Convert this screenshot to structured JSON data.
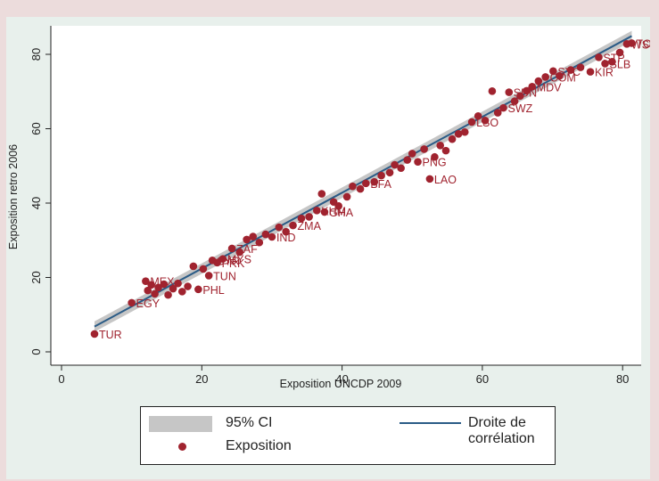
{
  "chart_data": {
    "type": "scatter",
    "xlabel": "Exposition UNCDP 2009",
    "ylabel": "Exposition retro 2006",
    "xlim": [
      0,
      82
    ],
    "ylim": [
      0,
      85
    ],
    "xticks": [
      0,
      20,
      40,
      60,
      80
    ],
    "yticks": [
      0,
      20,
      40,
      60,
      80
    ],
    "grid": false,
    "legend_position": "bottom",
    "fit": {
      "intercept": 2.0,
      "slope": 1.02
    },
    "series": [
      {
        "name": "Exposition",
        "color": "#a0232f",
        "points": [
          {
            "x": 4.7,
            "y": 4.8,
            "label": "TUR"
          },
          {
            "x": 10.0,
            "y": 13.2,
            "label": "EGY"
          },
          {
            "x": 12.0,
            "y": 19.0,
            "label": "MEX"
          },
          {
            "x": 12.3,
            "y": 16.5,
            "label": ""
          },
          {
            "x": 12.8,
            "y": 18.0,
            "label": ""
          },
          {
            "x": 13.3,
            "y": 15.6,
            "label": ""
          },
          {
            "x": 13.8,
            "y": 17.3,
            "label": ""
          },
          {
            "x": 14.6,
            "y": 18.2,
            "label": ""
          },
          {
            "x": 15.2,
            "y": 15.3,
            "label": ""
          },
          {
            "x": 15.9,
            "y": 17.0,
            "label": ""
          },
          {
            "x": 16.6,
            "y": 18.4,
            "label": ""
          },
          {
            "x": 17.2,
            "y": 16.2,
            "label": ""
          },
          {
            "x": 18.0,
            "y": 17.6,
            "label": ""
          },
          {
            "x": 18.8,
            "y": 23.0,
            "label": ""
          },
          {
            "x": 19.5,
            "y": 16.8,
            "label": "PHL"
          },
          {
            "x": 20.2,
            "y": 22.3,
            "label": ""
          },
          {
            "x": 21.0,
            "y": 20.5,
            "label": "TUN"
          },
          {
            "x": 21.5,
            "y": 24.6,
            "label": "SYR"
          },
          {
            "x": 22.2,
            "y": 24.0,
            "label": "PRK"
          },
          {
            "x": 23.0,
            "y": 25.0,
            "label": "MYS"
          },
          {
            "x": 24.3,
            "y": 27.8,
            "label": "ZAF"
          },
          {
            "x": 25.4,
            "y": 26.8,
            "label": ""
          },
          {
            "x": 26.4,
            "y": 30.2,
            "label": ""
          },
          {
            "x": 27.3,
            "y": 31.0,
            "label": ""
          },
          {
            "x": 28.2,
            "y": 29.4,
            "label": ""
          },
          {
            "x": 29.1,
            "y": 31.6,
            "label": ""
          },
          {
            "x": 30.0,
            "y": 30.9,
            "label": "IND"
          },
          {
            "x": 31.0,
            "y": 33.5,
            "label": ""
          },
          {
            "x": 32.0,
            "y": 32.3,
            "label": ""
          },
          {
            "x": 33.0,
            "y": 34.0,
            "label": "ZMA"
          },
          {
            "x": 34.2,
            "y": 35.9,
            "label": ""
          },
          {
            "x": 35.3,
            "y": 36.3,
            "label": ""
          },
          {
            "x": 36.4,
            "y": 38.0,
            "label": "KHM"
          },
          {
            "x": 37.1,
            "y": 42.5,
            "label": ""
          },
          {
            "x": 37.5,
            "y": 37.6,
            "label": "GHA"
          },
          {
            "x": 38.8,
            "y": 40.3,
            "label": ""
          },
          {
            "x": 39.5,
            "y": 39.2,
            "label": ""
          },
          {
            "x": 40.7,
            "y": 41.7,
            "label": ""
          },
          {
            "x": 41.5,
            "y": 44.5,
            "label": ""
          },
          {
            "x": 42.6,
            "y": 43.8,
            "label": ""
          },
          {
            "x": 43.4,
            "y": 45.3,
            "label": "BFA"
          },
          {
            "x": 44.6,
            "y": 45.7,
            "label": ""
          },
          {
            "x": 45.6,
            "y": 47.4,
            "label": ""
          },
          {
            "x": 46.8,
            "y": 48.2,
            "label": ""
          },
          {
            "x": 47.5,
            "y": 50.3,
            "label": ""
          },
          {
            "x": 48.4,
            "y": 49.4,
            "label": ""
          },
          {
            "x": 49.3,
            "y": 51.6,
            "label": ""
          },
          {
            "x": 50.0,
            "y": 53.3,
            "label": ""
          },
          {
            "x": 50.8,
            "y": 51.1,
            "label": "PNG"
          },
          {
            "x": 51.7,
            "y": 54.5,
            "label": ""
          },
          {
            "x": 52.5,
            "y": 46.5,
            "label": "LAO"
          },
          {
            "x": 53.2,
            "y": 52.4,
            "label": ""
          },
          {
            "x": 54.0,
            "y": 55.5,
            "label": ""
          },
          {
            "x": 54.8,
            "y": 54.1,
            "label": ""
          },
          {
            "x": 55.7,
            "y": 57.2,
            "label": ""
          },
          {
            "x": 56.6,
            "y": 58.6,
            "label": ""
          },
          {
            "x": 57.5,
            "y": 59.1,
            "label": ""
          },
          {
            "x": 58.5,
            "y": 61.8,
            "label": "LSO"
          },
          {
            "x": 59.4,
            "y": 63.4,
            "label": ""
          },
          {
            "x": 60.4,
            "y": 62.2,
            "label": ""
          },
          {
            "x": 61.4,
            "y": 70.1,
            "label": ""
          },
          {
            "x": 62.2,
            "y": 64.3,
            "label": ""
          },
          {
            "x": 63.0,
            "y": 65.6,
            "label": "SWZ"
          },
          {
            "x": 63.8,
            "y": 69.8,
            "label": "SDN"
          },
          {
            "x": 64.6,
            "y": 67.4,
            "label": ""
          },
          {
            "x": 65.4,
            "y": 68.8,
            "label": ""
          },
          {
            "x": 66.3,
            "y": 70.2,
            "label": ""
          },
          {
            "x": 67.1,
            "y": 71.3,
            "label": "MDV"
          },
          {
            "x": 68.0,
            "y": 72.8,
            "label": ""
          },
          {
            "x": 69.0,
            "y": 73.9,
            "label": "COM"
          },
          {
            "x": 70.1,
            "y": 75.5,
            "label": "SYC"
          },
          {
            "x": 71.0,
            "y": 74.2,
            "label": ""
          },
          {
            "x": 72.6,
            "y": 75.8,
            "label": ""
          },
          {
            "x": 74.0,
            "y": 76.5,
            "label": ""
          },
          {
            "x": 75.4,
            "y": 75.3,
            "label": "KIR"
          },
          {
            "x": 76.6,
            "y": 79.2,
            "label": "STP"
          },
          {
            "x": 77.5,
            "y": 77.5,
            "label": "SLB"
          },
          {
            "x": 78.5,
            "y": 78.0,
            "label": ""
          },
          {
            "x": 79.6,
            "y": 80.5,
            "label": ""
          },
          {
            "x": 80.6,
            "y": 82.8,
            "label": "WSM"
          },
          {
            "x": 81.3,
            "y": 83.0,
            "label": "TON"
          }
        ]
      }
    ]
  },
  "legend": {
    "ci_label": "95% CI",
    "fit_label": "Droite de corrélation",
    "points_label": "Exposition"
  }
}
